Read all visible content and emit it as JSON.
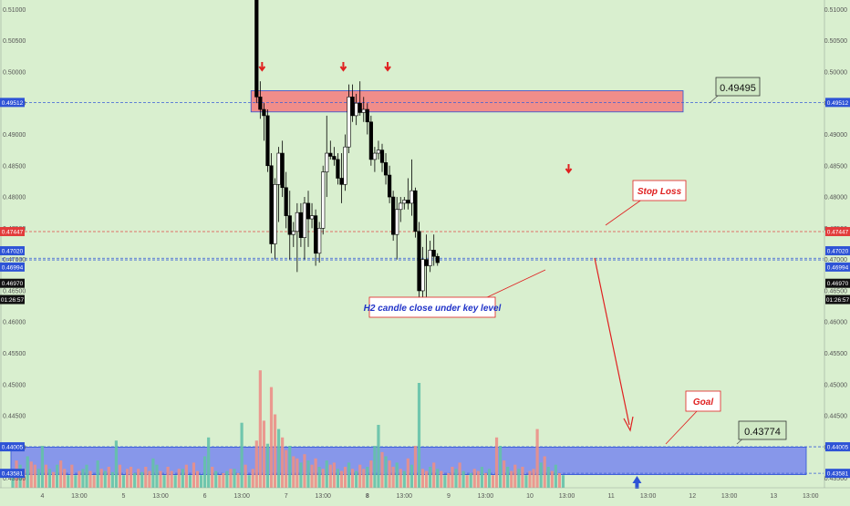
{
  "chart_data": {
    "type": "candlestick",
    "title": "",
    "y_ticks": [
      "0.51000",
      "0.50500",
      "0.50000",
      "0.49500",
      "0.49000",
      "0.48500",
      "0.48000",
      "0.47500",
      "0.47000",
      "0.46500",
      "0.46000",
      "0.45500",
      "0.45000",
      "0.44500",
      "0.44000",
      "0.43500"
    ],
    "y_tick_values": [
      0.51,
      0.505,
      0.5,
      0.495,
      0.49,
      0.485,
      0.48,
      0.475,
      0.47,
      0.465,
      0.46,
      0.455,
      0.45,
      0.445,
      0.44,
      0.435
    ],
    "ylim": [
      0.4335,
      0.5115
    ],
    "x_ticks": [
      {
        "label": "4",
        "bold": false,
        "bar": 8
      },
      {
        "label": "13:00",
        "bold": false,
        "bar": 18
      },
      {
        "label": "5",
        "bold": false,
        "bar": 30
      },
      {
        "label": "13:00",
        "bold": false,
        "bar": 40
      },
      {
        "label": "6",
        "bold": false,
        "bar": 52
      },
      {
        "label": "13:00",
        "bold": false,
        "bar": 62
      },
      {
        "label": "7",
        "bold": false,
        "bar": 74
      },
      {
        "label": "13:00",
        "bold": false,
        "bar": 84
      },
      {
        "label": "8",
        "bold": true,
        "bar": 96
      },
      {
        "label": "13:00",
        "bold": false,
        "bar": 106
      },
      {
        "label": "9",
        "bold": false,
        "bar": 118
      },
      {
        "label": "13:00",
        "bold": false,
        "bar": 128
      },
      {
        "label": "10",
        "bold": false,
        "bar": 140
      },
      {
        "label": "13:00",
        "bold": false,
        "bar": 150
      },
      {
        "label": "11",
        "bold": false,
        "bar": 162
      },
      {
        "label": "13:00",
        "bold": false,
        "bar": 172
      },
      {
        "label": "12",
        "bold": false,
        "bar": 184
      },
      {
        "label": "13:00",
        "bold": false,
        "bar": 194
      },
      {
        "label": "13",
        "bold": false,
        "bar": 206
      },
      {
        "label": "13:00",
        "bold": false,
        "bar": 216
      }
    ],
    "candles_start_bar": 66,
    "candles": [
      [
        0.515,
        0.517,
        0.495,
        0.496
      ],
      [
        0.496,
        0.4985,
        0.4925,
        0.494
      ],
      [
        0.494,
        0.495,
        0.489,
        0.493
      ],
      [
        0.493,
        0.494,
        0.484,
        0.485
      ],
      [
        0.485,
        0.487,
        0.471,
        0.4725
      ],
      [
        0.4725,
        0.483,
        0.47,
        0.482
      ],
      [
        0.482,
        0.488,
        0.476,
        0.487
      ],
      [
        0.487,
        0.489,
        0.48,
        0.4815
      ],
      [
        0.4815,
        0.484,
        0.475,
        0.477
      ],
      [
        0.477,
        0.481,
        0.47,
        0.474
      ],
      [
        0.474,
        0.476,
        0.472,
        0.4745
      ],
      [
        0.4745,
        0.479,
        0.468,
        0.4775
      ],
      [
        0.4775,
        0.479,
        0.472,
        0.4735
      ],
      [
        0.4735,
        0.48,
        0.47,
        0.479
      ],
      [
        0.479,
        0.481,
        0.472,
        0.4765
      ],
      [
        0.4765,
        0.479,
        0.475,
        0.477
      ],
      [
        0.477,
        0.478,
        0.469,
        0.471
      ],
      [
        0.471,
        0.476,
        0.4695,
        0.475
      ],
      [
        0.475,
        0.485,
        0.474,
        0.484
      ],
      [
        0.484,
        0.493,
        0.48,
        0.487
      ],
      [
        0.487,
        0.489,
        0.486,
        0.4865
      ],
      [
        0.4865,
        0.488,
        0.485,
        0.486
      ],
      [
        0.486,
        0.487,
        0.482,
        0.483
      ],
      [
        0.483,
        0.487,
        0.479,
        0.482
      ],
      [
        0.482,
        0.49,
        0.481,
        0.488
      ],
      [
        0.488,
        0.498,
        0.487,
        0.496
      ],
      [
        0.496,
        0.498,
        0.492,
        0.493
      ],
      [
        0.493,
        0.4965,
        0.4915,
        0.495
      ],
      [
        0.495,
        0.4985,
        0.493,
        0.4935
      ],
      [
        0.4935,
        0.496,
        0.492,
        0.494
      ],
      [
        0.494,
        0.495,
        0.49,
        0.492
      ],
      [
        0.492,
        0.493,
        0.485,
        0.486
      ],
      [
        0.486,
        0.488,
        0.484,
        0.487
      ],
      [
        0.487,
        0.489,
        0.486,
        0.4875
      ],
      [
        0.4875,
        0.4885,
        0.484,
        0.4855
      ],
      [
        0.4855,
        0.487,
        0.482,
        0.4835
      ],
      [
        0.4835,
        0.485,
        0.479,
        0.48
      ],
      [
        0.48,
        0.481,
        0.473,
        0.474
      ],
      [
        0.474,
        0.48,
        0.47,
        0.478
      ],
      [
        0.478,
        0.48,
        0.476,
        0.479
      ],
      [
        0.479,
        0.48,
        0.478,
        0.4795
      ],
      [
        0.4795,
        0.483,
        0.478,
        0.479
      ],
      [
        0.479,
        0.486,
        0.477,
        0.481
      ],
      [
        0.481,
        0.4815,
        0.4735,
        0.4745
      ],
      [
        0.4745,
        0.476,
        0.463,
        0.465
      ],
      [
        0.465,
        0.472,
        0.462,
        0.47
      ],
      [
        0.47,
        0.474,
        0.464,
        0.469
      ],
      [
        0.469,
        0.473,
        0.468,
        0.4715
      ],
      [
        0.4715,
        0.474,
        0.469,
        0.4705
      ],
      [
        0.4705,
        0.471,
        0.469,
        0.4695
      ]
    ],
    "volume": {
      "values": [
        18,
        26,
        22,
        18,
        30,
        25,
        22,
        18,
        40,
        22,
        18,
        15,
        22,
        26,
        18,
        12,
        22,
        12,
        16,
        18,
        22,
        16,
        12,
        26,
        18,
        16,
        20,
        15,
        45,
        22,
        12,
        18,
        20,
        14,
        18,
        15,
        20,
        16,
        28,
        22,
        16,
        12,
        20,
        16,
        12,
        18,
        18,
        22,
        12,
        24,
        16,
        12,
        30,
        48,
        20,
        16,
        12,
        14,
        16,
        18,
        18,
        14,
        62,
        22,
        12,
        18,
        45,
        112,
        64,
        42,
        96,
        70,
        56,
        48,
        36,
        40,
        30,
        28,
        24,
        32,
        26,
        22,
        28,
        20,
        18,
        26,
        22,
        24,
        18,
        16,
        20,
        24,
        18,
        16,
        22,
        18,
        20,
        26,
        40,
        60,
        34,
        30,
        26,
        20,
        24,
        18,
        16,
        28,
        22,
        40,
        100,
        18,
        16,
        20,
        24,
        18,
        16,
        12,
        14,
        20,
        18,
        24,
        16,
        12,
        14,
        18,
        16,
        20,
        14,
        18,
        12,
        48,
        40,
        26,
        20,
        16,
        22,
        18,
        20,
        12,
        16,
        18,
        56,
        24,
        30,
        20,
        16,
        22,
        14,
        12
      ],
      "up_flags": [
        1,
        0,
        1,
        0,
        1,
        0,
        0,
        1,
        1,
        0,
        1,
        0,
        1,
        0,
        0,
        1,
        0,
        1,
        0,
        1,
        1,
        0,
        0,
        1,
        0,
        1,
        0,
        1,
        1,
        0,
        1,
        0,
        0,
        1,
        0,
        1,
        0,
        0,
        1,
        1,
        0,
        1,
        0,
        0,
        1,
        0,
        1,
        0,
        1,
        0,
        0,
        1,
        1,
        1,
        0,
        1,
        0,
        0,
        1,
        0,
        1,
        0,
        1,
        0,
        1,
        0,
        0,
        0,
        0,
        1,
        0,
        0,
        1,
        0,
        0,
        1,
        0,
        0,
        1,
        0,
        1,
        0,
        0,
        1,
        0,
        1,
        0,
        0,
        1,
        0,
        0,
        1,
        0,
        1,
        0,
        0,
        1,
        0,
        1,
        1,
        0,
        1,
        0,
        0,
        1,
        0,
        1,
        0,
        1,
        0,
        1,
        0,
        0,
        1,
        0,
        1,
        0,
        1,
        0,
        0,
        1,
        0,
        1,
        0,
        1,
        0,
        0,
        1,
        0,
        1,
        0,
        0,
        1,
        0,
        1,
        0,
        0,
        1,
        0,
        1,
        0,
        0,
        0,
        1,
        0,
        1,
        0,
        1,
        0,
        1
      ],
      "colors": {
        "up": "#64c1a8",
        "down": "#eb8f87"
      }
    },
    "zones": [
      {
        "name": "supply-zone",
        "from": 0.4936,
        "to": 0.497,
        "start_bar": 65,
        "color": "#f28282"
      },
      {
        "name": "goal-zone",
        "from": 0.4356,
        "to": 0.44,
        "start_bar": 0,
        "color": "#7887ef"
      }
    ],
    "hlines": [
      {
        "name": "supply-level",
        "value": 0.49512,
        "color": "#3a5fd8"
      },
      {
        "name": "stop-loss-level",
        "value": 0.47447,
        "color": "#e24848"
      },
      {
        "name": "key-level-top",
        "value": 0.4702,
        "color": "#3a5fd8"
      },
      {
        "name": "key-level-bottom",
        "value": 0.46994,
        "color": "#3a5fd8"
      },
      {
        "name": "goal-level-top",
        "value": 0.44005,
        "color": "#3a5fd8"
      },
      {
        "name": "goal-level-bottom",
        "value": 0.43581,
        "color": "#3a5fd8"
      }
    ],
    "price_badges": [
      {
        "label": "0.49512",
        "value": 0.49512,
        "bg": "#2e53d6"
      },
      {
        "label": "0.47447",
        "value": 0.47447,
        "bg": "#e23b3b"
      },
      {
        "label": "0.47020",
        "value": 0.4714,
        "bg": "#2e53d6"
      },
      {
        "label": "0.46994",
        "value": 0.4688,
        "bg": "#2e53d6"
      },
      {
        "label": "0.46970",
        "value": 0.4662,
        "bg": "#111111"
      },
      {
        "label": "01:26:57",
        "value": 0.4636,
        "bg": "#111111"
      },
      {
        "label": "0.44005",
        "value": 0.44005,
        "bg": "#2e53d6"
      },
      {
        "label": "0.43581",
        "value": 0.43581,
        "bg": "#2e53d6"
      }
    ],
    "annotations": {
      "level_label_top": "0.49495",
      "level_label_goal": "0.43774",
      "stop_loss": "Stop Loss",
      "goal": "Goal",
      "candle_note": "H2 candle close under key level"
    },
    "red_down_arrow_bars": [
      67,
      89,
      101,
      150
    ],
    "blue_up_arrow_bar": 169,
    "colors": {
      "background": "#d9efcf",
      "candle_body_up": "#ffffff",
      "candle_body_down": "#000000",
      "wick": "#000000",
      "annotation_red": "#e02020",
      "annotation_blue": "#1f32c8"
    }
  }
}
